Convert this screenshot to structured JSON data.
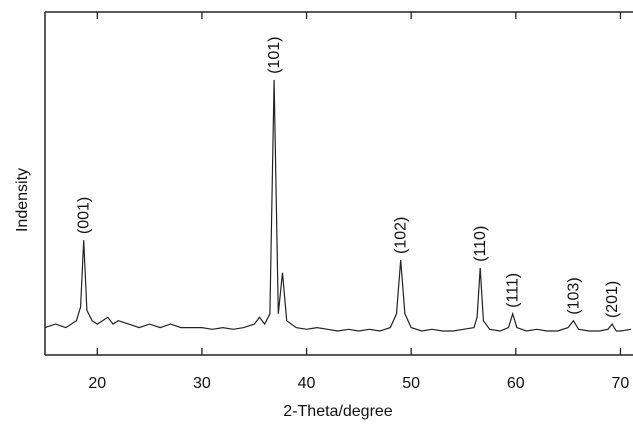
{
  "chart_data": {
    "type": "line",
    "xlabel": "2-Theta/degree",
    "ylabel": "Indensity",
    "xlim": [
      15,
      71.2
    ],
    "ylim": [
      0,
      100
    ],
    "xticks": [
      20,
      30,
      40,
      50,
      60,
      70
    ],
    "color": "#222222",
    "x": [
      15,
      16,
      17,
      17.5,
      18,
      18.4,
      18.7,
      19,
      19.5,
      20,
      21,
      21.5,
      22,
      23,
      24,
      25,
      26,
      27,
      28,
      29,
      30,
      31,
      32,
      33,
      34,
      35,
      35.5,
      36,
      36.5,
      36.9,
      37.3,
      37.7,
      38.1,
      39,
      40,
      41,
      42,
      43,
      44,
      45,
      46,
      47,
      48,
      48.6,
      49,
      49.4,
      50,
      51,
      52,
      53,
      54,
      55,
      56,
      56.3,
      56.6,
      56.9,
      57.5,
      58.5,
      59.3,
      59.7,
      60.1,
      61,
      62,
      63,
      64,
      65,
      65.5,
      66,
      67,
      68,
      68.8,
      69.2,
      69.6,
      70,
      71
    ],
    "values": [
      8,
      9,
      8,
      9,
      10,
      14,
      33.5,
      13,
      10,
      9,
      11,
      9,
      10,
      9,
      8,
      9,
      8,
      9,
      8,
      8,
      8,
      7.5,
      8,
      7.5,
      8,
      9,
      11,
      9,
      12,
      80.2,
      12,
      24,
      10,
      8,
      7.5,
      8,
      7.5,
      7,
      7.5,
      7,
      7.5,
      7,
      8,
      12,
      27.7,
      12,
      8,
      7,
      7.5,
      7,
      7,
      7.5,
      8,
      11,
      25.4,
      10,
      7.5,
      7,
      8,
      12,
      8,
      7,
      7.5,
      7,
      7,
      8,
      10,
      7.5,
      7,
      7,
      7.5,
      9,
      7,
      7,
      7.5
    ],
    "annotations": [
      {
        "text": "(001)",
        "x": 18.7
      },
      {
        "text": "(101)",
        "x": 36.9
      },
      {
        "text": "(102)",
        "x": 49
      },
      {
        "text": "(110)",
        "x": 56.6
      },
      {
        "text": "(111)",
        "x": 59.7
      },
      {
        "text": "(103)",
        "x": 65.5
      },
      {
        "text": "(201)",
        "x": 69.2
      }
    ]
  }
}
